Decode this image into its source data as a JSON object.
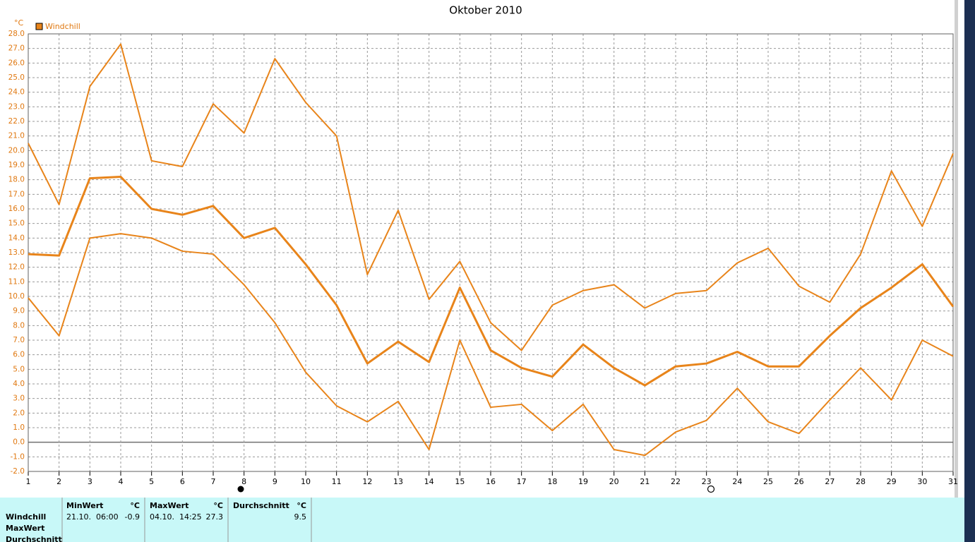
{
  "chart_data": {
    "type": "line",
    "title": "Oktober 2010",
    "y_label": "°C",
    "legend": {
      "label": "Windchill",
      "color": "#e8841a"
    },
    "x": [
      1,
      2,
      3,
      4,
      5,
      6,
      7,
      8,
      9,
      10,
      11,
      12,
      13,
      14,
      15,
      16,
      17,
      18,
      19,
      20,
      21,
      22,
      23,
      24,
      25,
      26,
      27,
      28,
      29,
      30,
      31
    ],
    "xlim": [
      1,
      31
    ],
    "xticks": [
      1,
      2,
      3,
      4,
      5,
      6,
      7,
      8,
      9,
      10,
      11,
      12,
      13,
      14,
      15,
      16,
      17,
      18,
      19,
      20,
      21,
      22,
      23,
      24,
      25,
      26,
      27,
      28,
      29,
      30,
      31
    ],
    "ylim": [
      -2,
      28
    ],
    "yticks": [
      {
        "value": -2,
        "label": "-2.0"
      },
      {
        "value": -1,
        "label": "-1.0"
      },
      {
        "value": 0,
        "label": "0.0"
      },
      {
        "value": 1,
        "label": "1.0"
      },
      {
        "value": 2,
        "label": "2.0"
      },
      {
        "value": 3,
        "label": "3.0"
      },
      {
        "value": 4,
        "label": "4.0"
      },
      {
        "value": 5,
        "label": "5.0"
      },
      {
        "value": 6,
        "label": "6.0"
      },
      {
        "value": 7,
        "label": "7.0"
      },
      {
        "value": 8,
        "label": "8.0"
      },
      {
        "value": 9,
        "label": "9.0"
      },
      {
        "value": 10,
        "label": "10.0"
      },
      {
        "value": 11,
        "label": "11.0"
      },
      {
        "value": 12,
        "label": "12.0"
      },
      {
        "value": 13,
        "label": "13.0"
      },
      {
        "value": 14,
        "label": "14.0"
      },
      {
        "value": 15,
        "label": "15.0"
      },
      {
        "value": 16,
        "label": "16.0"
      },
      {
        "value": 17,
        "label": "17.0"
      },
      {
        "value": 18,
        "label": "18.0"
      },
      {
        "value": 19,
        "label": "19.0"
      },
      {
        "value": 20,
        "label": "20.0"
      },
      {
        "value": 21,
        "label": "21.0"
      },
      {
        "value": 22,
        "label": "22.0"
      },
      {
        "value": 23,
        "label": "23.0"
      },
      {
        "value": 24,
        "label": "24.0"
      },
      {
        "value": 25,
        "label": "25.0"
      },
      {
        "value": 26,
        "label": "26.0"
      },
      {
        "value": 27,
        "label": "27.0"
      },
      {
        "value": 28,
        "label": "28.0"
      }
    ],
    "grid": true,
    "series": [
      {
        "color": "#e8841a",
        "width": 2,
        "values": [
          20.5,
          16.3,
          24.4,
          27.3,
          19.3,
          18.9,
          23.2,
          21.2,
          26.3,
          23.3,
          21.0,
          11.5,
          15.9,
          9.8,
          12.4,
          8.2,
          6.3,
          9.4,
          10.4,
          10.8,
          9.2,
          10.2,
          10.4,
          12.3,
          13.3,
          10.7,
          9.6,
          12.9,
          18.6,
          14.8,
          19.8
        ]
      },
      {
        "color": "#e8841a",
        "width": 3,
        "values": [
          12.9,
          12.8,
          18.1,
          18.2,
          16.0,
          15.6,
          16.2,
          14.0,
          14.7,
          12.2,
          9.4,
          5.4,
          6.9,
          5.5,
          10.6,
          6.3,
          5.1,
          4.5,
          6.7,
          5.1,
          3.9,
          5.2,
          5.4,
          6.2,
          5.2,
          5.2,
          7.3,
          9.2,
          10.6,
          12.2,
          9.3
        ]
      },
      {
        "color": "#e8841a",
        "width": 2,
        "values": [
          9.9,
          7.3,
          14.0,
          14.3,
          14.0,
          13.1,
          12.9,
          10.8,
          8.2,
          4.8,
          2.5,
          1.4,
          2.8,
          -0.5,
          7.0,
          2.4,
          2.6,
          0.8,
          2.6,
          -0.5,
          -0.9,
          0.7,
          1.5,
          3.7,
          1.4,
          0.6,
          2.9,
          5.1,
          2.9,
          7.0,
          5.9
        ]
      }
    ]
  },
  "table": {
    "row_labels": [
      "Windchill",
      "MaxWert",
      "Durchschnitt"
    ],
    "columns": [
      {
        "header": "MinWert",
        "unit": "°C",
        "time": "21.10.  06:00",
        "value": -0.9
      },
      {
        "header": "MaxWert",
        "unit": "°C",
        "time": "04.10.  14:25",
        "value": 27.3
      },
      {
        "header": "Durchschnitt",
        "unit": "°C",
        "value": 9.5
      }
    ]
  }
}
